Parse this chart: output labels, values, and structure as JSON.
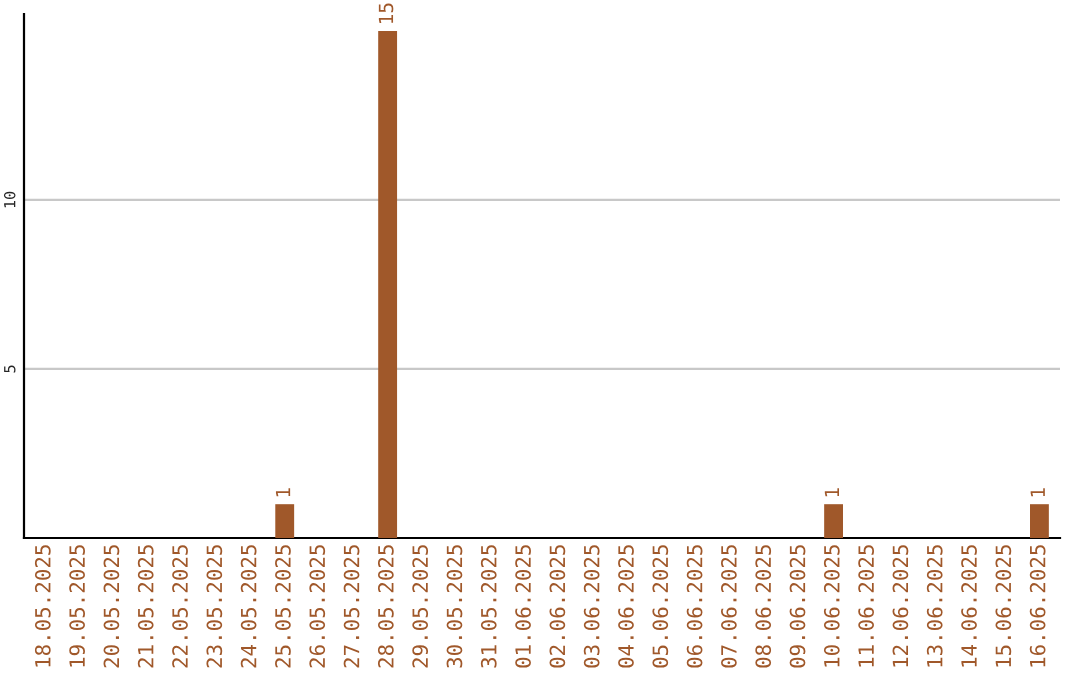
{
  "chart_data": {
    "type": "bar",
    "categories": [
      "18.05.2025",
      "19.05.2025",
      "20.05.2025",
      "21.05.2025",
      "22.05.2025",
      "23.05.2025",
      "24.05.2025",
      "25.05.2025",
      "26.05.2025",
      "27.05.2025",
      "28.05.2025",
      "29.05.2025",
      "30.05.2025",
      "31.05.2025",
      "01.06.2025",
      "02.06.2025",
      "03.06.2025",
      "04.06.2025",
      "05.06.2025",
      "06.06.2025",
      "07.06.2025",
      "08.06.2025",
      "09.06.2025",
      "10.06.2025",
      "11.06.2025",
      "12.06.2025",
      "13.06.2025",
      "14.06.2025",
      "15.06.2025",
      "16.06.2025"
    ],
    "values": [
      0,
      0,
      0,
      0,
      0,
      0,
      0,
      1,
      0,
      0,
      15,
      0,
      0,
      0,
      0,
      0,
      0,
      0,
      0,
      0,
      0,
      0,
      0,
      1,
      0,
      0,
      0,
      0,
      0,
      1
    ],
    "value_labels": [
      null,
      null,
      null,
      null,
      null,
      null,
      null,
      "1",
      null,
      null,
      "15",
      null,
      null,
      null,
      null,
      null,
      null,
      null,
      null,
      null,
      null,
      null,
      null,
      "1",
      null,
      null,
      null,
      null,
      null,
      "1"
    ],
    "color": "#a0582a",
    "ylim": [
      0,
      15.5
    ],
    "yticks": [
      5,
      10
    ],
    "grid": "y"
  }
}
